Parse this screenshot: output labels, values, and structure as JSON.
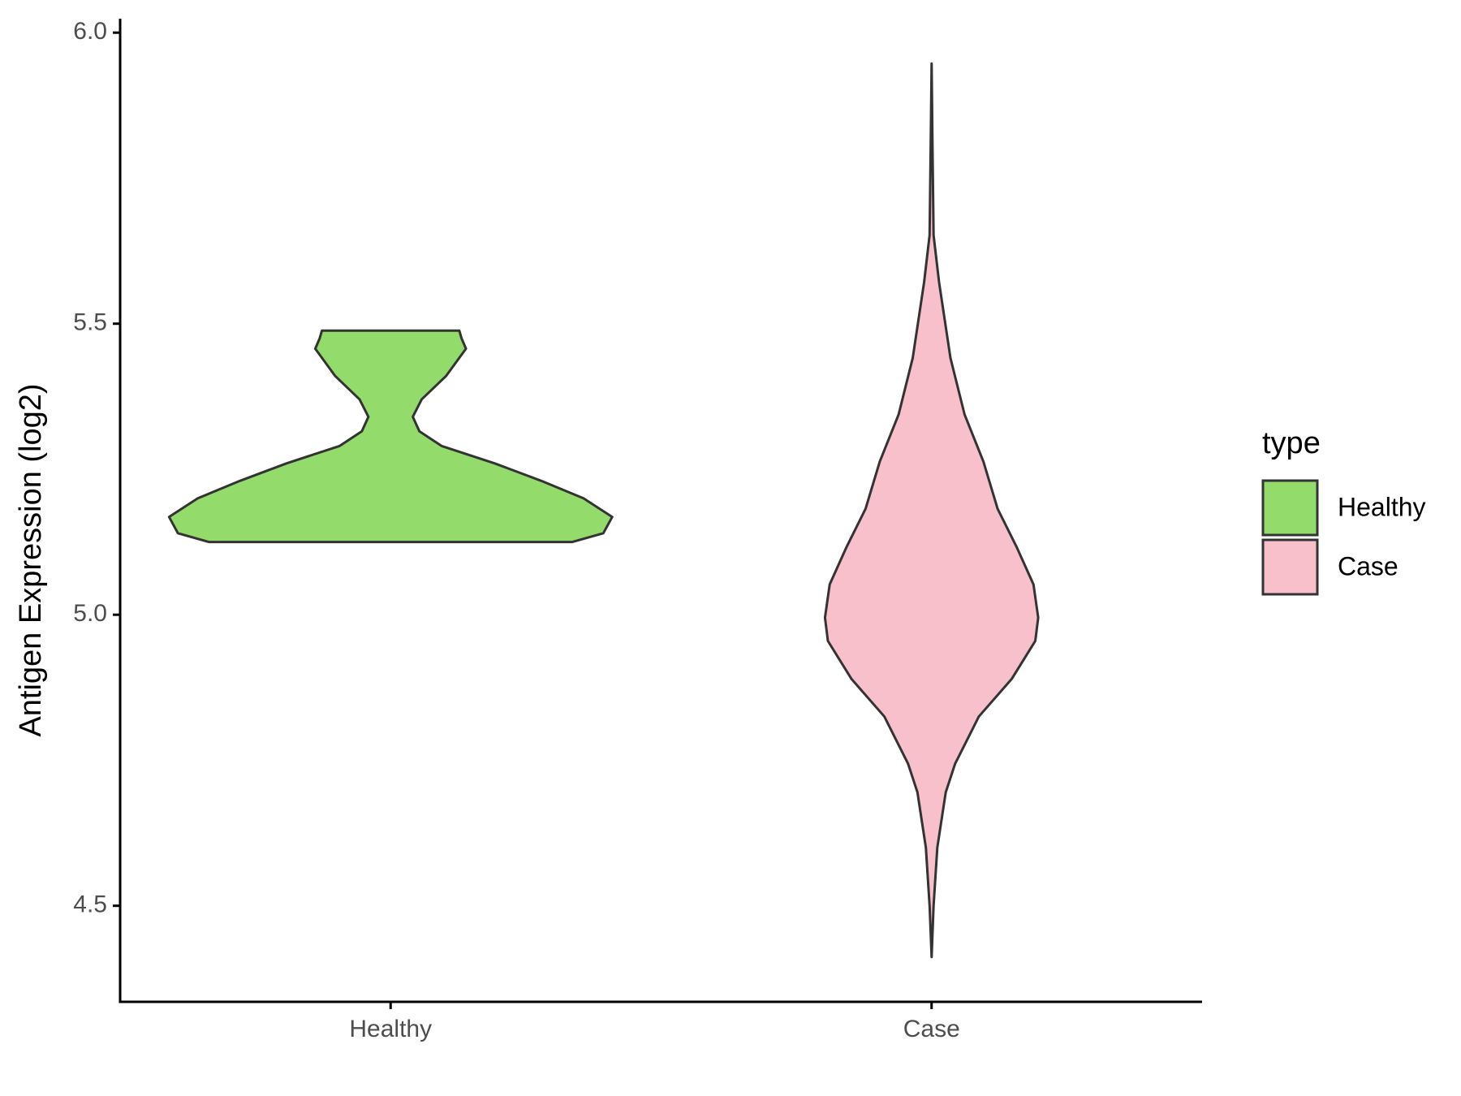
{
  "chart_data": {
    "type": "violin",
    "y_label": "Antigen Expression (log2)",
    "legend_title": "type",
    "legend_position": "right",
    "categories": [
      "Healthy",
      "Case"
    ],
    "ylim": [
      4.335,
      6.024
    ],
    "yticks": [
      {
        "value": 4.5,
        "label": "4.5"
      },
      {
        "value": 5,
        "label": "5.0"
      },
      {
        "value": 5.5,
        "label": "5.5"
      },
      {
        "value": 6,
        "label": "6.0"
      }
    ],
    "series": [
      {
        "name": "Healthy",
        "color": "#93dc6b",
        "y": [
          5.125,
          5.14,
          5.168,
          5.2,
          5.23,
          5.26,
          5.29,
          5.315,
          5.34,
          5.37,
          5.41,
          5.457,
          5.475,
          5.488
        ],
        "density": [
          0.82,
          0.96,
          1.0,
          0.87,
          0.68,
          0.47,
          0.23,
          0.13,
          0.1,
          0.14,
          0.25,
          0.34,
          0.32,
          0.31
        ]
      },
      {
        "name": "Case",
        "color": "#f7c0cb",
        "y": [
          4.412,
          4.5,
          4.6,
          4.695,
          4.744,
          4.825,
          4.89,
          4.955,
          4.995,
          5.052,
          5.117,
          5.182,
          5.263,
          5.344,
          5.441,
          5.571,
          5.652,
          5.814,
          5.947
        ],
        "density": [
          0,
          0.009,
          0.026,
          0.064,
          0.106,
          0.213,
          0.362,
          0.468,
          0.481,
          0.46,
          0.383,
          0.298,
          0.234,
          0.149,
          0.085,
          0.034,
          0.009,
          0.004,
          0
        ]
      }
    ]
  }
}
